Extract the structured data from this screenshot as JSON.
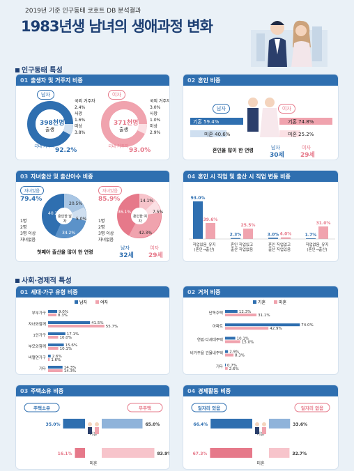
{
  "header": {
    "subtitle": "2019년 기준 인구동태 코호트 DB 분석결과",
    "title": "1983년생 남녀의 생애과정 변화"
  },
  "section1": {
    "title": "인구동태 특성"
  },
  "card1": {
    "num": "01",
    "title": "출생자 및 거주지 비중",
    "male": "남자",
    "female": "여자",
    "m_total": "398천명",
    "m_total_label": "출생",
    "m_domestic": "92.2%",
    "m_domestic_label": "국내 거주자",
    "m_legend": [
      "국외 거주자",
      "2.4%",
      "사망",
      "1.6%",
      "미상",
      "3.8%"
    ],
    "f_total": "371천명",
    "f_total_label": "출생",
    "f_domestic": "93.0%",
    "f_domestic_label": "국내 거주자",
    "f_legend": [
      "국외 거주자",
      "3.0%",
      "사망",
      "1.0%",
      "미상",
      "2.9%"
    ]
  },
  "card2": {
    "num": "02",
    "title": "혼인 비중",
    "male": "남자",
    "female": "여자",
    "m_married_label": "기혼",
    "m_married": "59.4%",
    "m_unmarried_label": "미혼",
    "m_unmarried": "40.6%",
    "f_married_label": "기혼",
    "f_married": "74.8%",
    "f_unmarried_label": "미혼",
    "f_unmarried": "25.2%",
    "age_label": "혼인을 많이 한 연령",
    "m_age_label": "남자",
    "m_age": "30세",
    "f_age_label": "여자",
    "f_age": "29세"
  },
  "card3": {
    "num": "03",
    "title": "자녀출산 및 출산아수 비중",
    "m_tag": "자녀있음",
    "m_pct": "79.4%",
    "m_center": "혼인한 남자",
    "m_slices": [
      "40.2%",
      "20.5%",
      "34.2%",
      "5.0%"
    ],
    "f_tag": "자녀있음",
    "f_pct": "85.9%",
    "f_center": "혼인한 여자",
    "f_slices": [
      "36.1%",
      "14.1%",
      "42.3%",
      "7.5%"
    ],
    "legend": [
      "1명",
      "2명",
      "3명 이상",
      "자녀없음"
    ],
    "first_label": "첫째아 출산을 많이 한 연령",
    "m_age_label": "남자",
    "m_age": "32세",
    "f_age_label": "여자",
    "f_age": "29세"
  },
  "card4": {
    "num": "04",
    "title": "혼인 시 직업 및 출산 시 직업 변동 비중",
    "groups": [
      {
        "m": 93.0,
        "f": 39.6,
        "ml": "93.0%",
        "fl": "39.6%",
        "label": "직업있음_유지 (혼인→출산)"
      },
      {
        "m": 2.3,
        "f": 25.5,
        "ml": "2.3%",
        "fl": "25.5%",
        "label": "혼인 직업있고 출산 직업없음"
      },
      {
        "m": 3.0,
        "f": 4.0,
        "ml": "3.0%",
        "fl": "4.0%",
        "label": "혼인 직업없고 출산 직업있음"
      },
      {
        "m": 1.7,
        "f": 31.0,
        "ml": "1.7%",
        "fl": "31.0%",
        "label": "직업없음_유지 (혼인→출산)"
      }
    ]
  },
  "section2": {
    "title": "사회·경제적 특성"
  },
  "card5": {
    "num": "01",
    "title": "세대·가구 유형 비중",
    "legend_m": "남자",
    "legend_f": "여자",
    "rows": [
      {
        "label": "부부가구",
        "m": 9.0,
        "f": 8.3,
        "ml": "9.0%",
        "fl": "8.3%"
      },
      {
        "label": "자녀와함께",
        "m": 41.5,
        "f": 55.7,
        "ml": "41.5%",
        "fl": "55.7%"
      },
      {
        "label": "1인가구",
        "m": 17.1,
        "f": 10.0,
        "ml": "17.1%",
        "fl": "10.0%"
      },
      {
        "label": "부모와함께",
        "m": 15.6,
        "f": 10.1,
        "ml": "15.6%",
        "fl": "10.1%"
      },
      {
        "label": "비혈연가구",
        "m": 2.6,
        "f": 1.6,
        "ml": "2.6%",
        "fl": "1.6%"
      },
      {
        "label": "기타",
        "m": 14.3,
        "f": 14.3,
        "ml": "14.3%",
        "fl": "14.3%"
      }
    ]
  },
  "card6": {
    "num": "02",
    "title": "거처 비중",
    "legend_m": "기혼",
    "legend_f": "미혼",
    "rows": [
      {
        "label": "단독주택",
        "m": 12.3,
        "f": 31.1,
        "ml": "12.3%",
        "fl": "31.1%"
      },
      {
        "label": "아파트",
        "m": 74.0,
        "f": 42.9,
        "ml": "74.0%",
        "fl": "42.9%"
      },
      {
        "label": "연립·다세대주택",
        "m": 10.1,
        "f": 15.0,
        "ml": "10.1%",
        "fl": "15.0%"
      },
      {
        "label": "비거주용 건물내주택",
        "m": 2.9,
        "f": 8.3,
        "ml": "2.9%",
        "fl": "8.3%"
      },
      {
        "label": "기타",
        "m": 0.7,
        "f": 2.6,
        "ml": "0.7%",
        "fl": "2.6%"
      }
    ]
  },
  "card7": {
    "num": "03",
    "title": "주택소유 비중",
    "left_tag": "주택소유",
    "right_tag": "무주택",
    "married_label": "기혼",
    "unmarried_label": "미혼",
    "married_left": "35.0%",
    "married_right": "65.0%",
    "unmarried_left": "16.1%",
    "unmarried_right": "83.9%",
    "married_left_v": 35.0,
    "unmarried_left_v": 16.1
  },
  "card8": {
    "num": "04",
    "title": "경제활동 비중",
    "left_tag": "일자리 있음",
    "right_tag": "일자리 없음",
    "married_label": "기혼",
    "unmarried_label": "미혼",
    "married_left": "66.4%",
    "married_right": "33.6%",
    "unmarried_left": "67.3%",
    "unmarried_right": "32.7%",
    "married_left_v": 66.4,
    "unmarried_left_v": 67.3
  },
  "colors": {
    "navy": "#1d3f73",
    "blue": "#2f6fb0",
    "pink": "#f0a3ae"
  }
}
